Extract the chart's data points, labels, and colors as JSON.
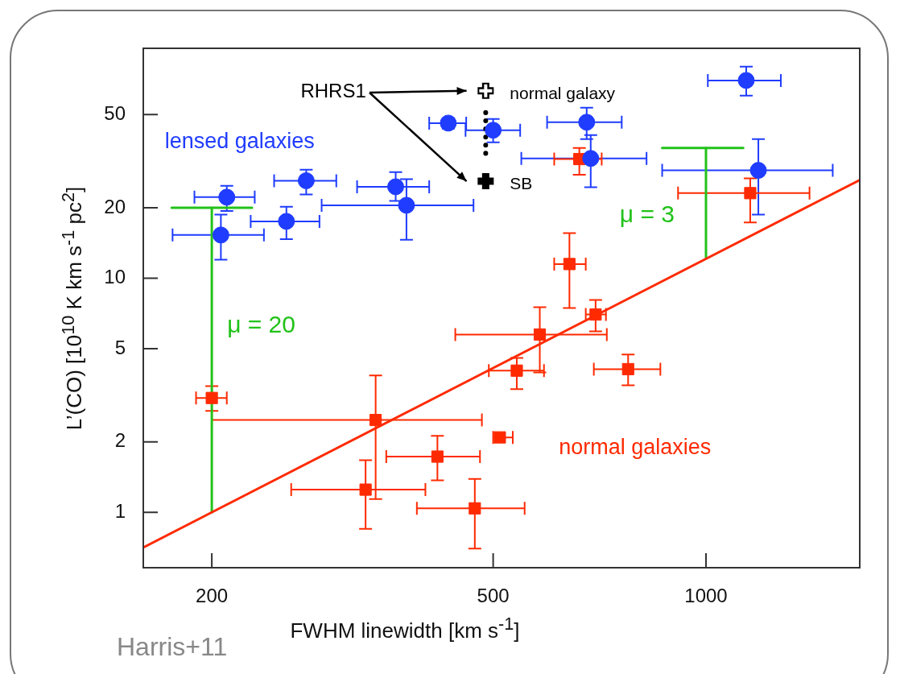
{
  "chart_data": {
    "type": "scatter",
    "xlabel": "FWHM linewidth [km s$^{-1}$]",
    "ylabel": "L’(CO) [10$^{10}$ K km s$^{-1}$ pc$^{2}$]",
    "log": "xy",
    "xlim": [
      160,
      1650
    ],
    "ylim": [
      0.58,
      96
    ],
    "xticks": [
      200,
      500,
      1000
    ],
    "yticks": [
      1,
      2,
      5,
      10,
      20,
      50
    ],
    "series": [
      {
        "name": "lensed galaxies",
        "marker": "circle",
        "color": "#1f3cff",
        "x": [
          210,
          206,
          255,
          272,
          364,
          377,
          432,
          500,
          678,
          687,
          1140,
          1186
        ],
        "values": [
          22.2,
          15.3,
          17.5,
          26.1,
          24.6,
          20.5,
          46.0,
          42.9,
          46.4,
          32.5,
          70.0,
          28.9
        ],
        "xerrors": [
          [
            189,
            230
          ],
          [
            176,
            237
          ],
          [
            227,
            284
          ],
          [
            245,
            300
          ],
          [
            321,
            406
          ],
          [
            286,
            469
          ],
          [
            406,
            458
          ],
          [
            457,
            546
          ],
          [
            596,
            760
          ],
          [
            548,
            824
          ],
          [
            1006,
            1276
          ],
          [
            867,
            1511
          ]
        ],
        "errors": [
          [
            19.4,
            24.8
          ],
          [
            12.0,
            18.7
          ],
          [
            14.7,
            20.2
          ],
          [
            22.8,
            29.1
          ],
          [
            21.4,
            28.4
          ],
          [
            14.6,
            26.5
          ],
          [
            43.6,
            48.3
          ],
          [
            38.1,
            47.9
          ],
          [
            39.3,
            53.5
          ],
          [
            24.5,
            40.9
          ],
          [
            60.3,
            80.1
          ],
          [
            18.7,
            39.3
          ]
        ]
      },
      {
        "name": "normal galaxies",
        "marker": "square",
        "color": "#ff2a00",
        "x": [
          200,
          341,
          330,
          417,
          471,
          511,
          540,
          582,
          698,
          776,
          641,
          662,
          1155
        ],
        "values": [
          3.08,
          2.48,
          1.25,
          1.73,
          1.04,
          2.09,
          4.03,
          5.75,
          7.0,
          4.09,
          11.5,
          32.3,
          23.1
        ],
        "xerrors": [
          [
            190,
            210
          ],
          [
            200,
            482
          ],
          [
            259,
            401
          ],
          [
            353,
            479
          ],
          [
            390,
            554
          ],
          [
            500,
            533
          ],
          [
            493,
            590
          ],
          [
            442,
            724
          ],
          [
            676,
            722
          ],
          [
            694,
            862
          ],
          [
            610,
            676
          ],
          [
            610,
            712
          ],
          [
            913,
            1401
          ]
        ],
        "errors": [
          [
            2.71,
            3.46
          ],
          [
            1.14,
            3.84
          ],
          [
            0.85,
            1.67
          ],
          [
            1.37,
            2.12
          ],
          [
            0.7,
            1.39
          ],
          null,
          [
            3.36,
            4.57
          ],
          [
            3.96,
            7.52
          ],
          [
            5.93,
            8.08
          ],
          [
            3.49,
            4.72
          ],
          [
            7.46,
            15.6
          ],
          [
            27.7,
            36.0
          ],
          [
            17.3,
            26.7
          ]
        ]
      },
      {
        "name": "normal galaxy",
        "marker": "cross",
        "color": "#000000",
        "x": [
          488
        ],
        "values": [
          63.2
        ]
      },
      {
        "name": "SB",
        "marker": "cross",
        "color": "#000000",
        "x": [
          488
        ],
        "values": [
          26.0
        ]
      },
      {
        "type": "line",
        "marker": "none",
        "line_style": "dotted",
        "color": "#000000",
        "x": [
          488,
          488
        ],
        "values": [
          51,
          32
        ]
      },
      {
        "type": "line",
        "marker": "none",
        "line_style": "solid",
        "color": "#ff2a00",
        "x": [
          160,
          1650
        ],
        "values": [
          0.708,
          26.3
        ]
      },
      {
        "type": "line",
        "marker": "none",
        "line_style": "solid",
        "color": "#22c21a",
        "x": [
          200,
          200
        ],
        "values": [
          1,
          20
        ]
      },
      {
        "type": "line",
        "marker": "none",
        "line_style": "solid",
        "color": "#22c21a",
        "x": [
          175.5,
          228
        ],
        "values": [
          20,
          20
        ]
      },
      {
        "type": "line",
        "marker": "none",
        "line_style": "solid",
        "color": "#22c21a",
        "x": [
          1000,
          1000
        ],
        "values": [
          12.3,
          36
        ]
      },
      {
        "type": "line",
        "marker": "none",
        "line_style": "solid",
        "color": "#22c21a",
        "x": [
          867,
          1129
        ],
        "values": [
          36,
          36
        ]
      }
    ],
    "annotations": [
      "RHRS1",
      "μ = 20",
      "μ = 3",
      "Harris+11"
    ]
  }
}
